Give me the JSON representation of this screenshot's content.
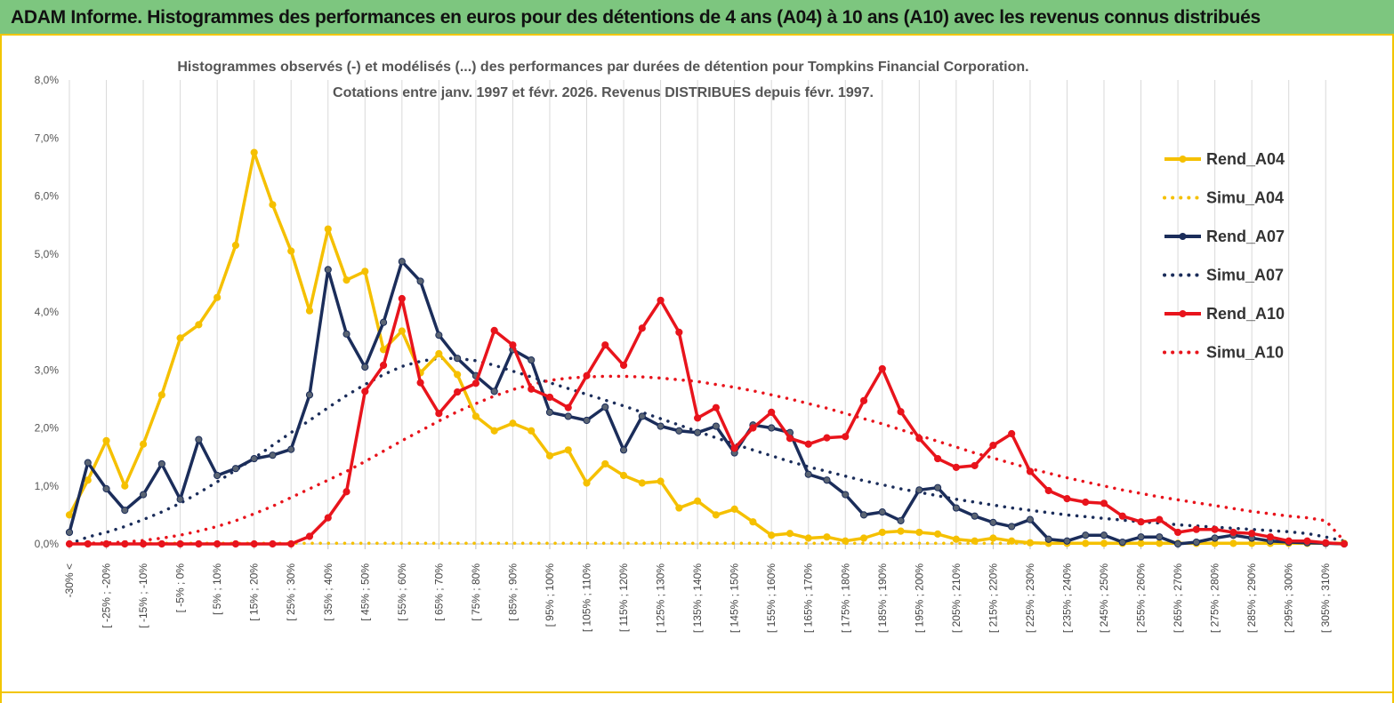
{
  "header": {
    "title": "ADAM Informe. Histogrammes des performances en euros pour des détentions de 4 ans (A04) à 10 ans (A10) avec les revenus connus distribués"
  },
  "chart_data": {
    "type": "line",
    "title": "Histogrammes observés (-) et modélisés (...) des performances par durées de détention pour Tompkins Financial Corporation.",
    "subtitle": "Cotations entre janv. 1997 et févr. 2026. Revenus DISTRIBUES depuis févr. 1997.",
    "xlabel": "",
    "ylabel": "",
    "ylim": [
      0,
      8
    ],
    "y_ticks": [
      "0,0%",
      "1,0%",
      "2,0%",
      "3,0%",
      "4,0%",
      "5,0%",
      "6,0%",
      "7,0%",
      "8,0%"
    ],
    "grid": "vertical",
    "legend_position": "right",
    "x_tick_labels": [
      "-30% <",
      "[ -25% ; -20%",
      "[ -15% ; -10%",
      "[ -5% ; 0%",
      "[ 5% ; 10%",
      "[ 15% ; 20%",
      "[ 25% ; 30%",
      "[ 35% ; 40%",
      "[ 45% ; 50%",
      "[ 55% ; 60%",
      "[ 65% ; 70%",
      "[ 75% ; 80%",
      "[ 85% ; 90%",
      "[ 95% ; 100%",
      "[ 105% ; 110%",
      "[ 115% ; 120%",
      "[ 125% ; 130%",
      "[ 135% ; 140%",
      "[ 145% ; 150%",
      "[ 155% ; 160%",
      "[ 165% ; 170%",
      "[ 175% ; 180%",
      "[ 185% ; 190%",
      "[ 195% ; 200%",
      "[ 205% ; 210%",
      "[ 215% ; 220%",
      "[ 225% ; 230%",
      "[ 235% ; 240%",
      "[ 245% ; 250%",
      "[ 255% ; 260%",
      "[ 265% ; 270%",
      "[ 275% ; 280%",
      "[ 285% ; 290%",
      "[ 295% ; 300%",
      "[ 305% ; 310%"
    ],
    "series": [
      {
        "name": "Rend_A04",
        "color": "#f5c000",
        "style": "solid",
        "values": [
          0.5,
          1.1,
          1.78,
          1.0,
          1.72,
          2.57,
          3.55,
          3.78,
          4.25,
          5.15,
          6.75,
          5.85,
          5.05,
          4.02,
          5.43,
          4.55,
          4.7,
          3.35,
          3.67,
          2.95,
          3.28,
          2.92,
          2.2,
          1.95,
          2.08,
          1.95,
          1.52,
          1.62,
          1.05,
          1.38,
          1.18,
          1.05,
          1.08,
          0.62,
          0.74,
          0.5,
          0.6,
          0.38,
          0.15,
          0.18,
          0.1,
          0.12,
          0.05,
          0.1,
          0.2,
          0.22,
          0.2,
          0.17,
          0.08,
          0.05,
          0.1,
          0.05,
          0.02,
          0.01,
          0.01,
          0.01,
          0.01,
          0.01,
          0.01,
          0.01,
          0.01,
          0.01,
          0.01,
          0.01,
          0.01,
          0.01,
          0.01,
          0.01,
          0.01,
          0.01
        ]
      },
      {
        "name": "Simu_A04",
        "color": "#f5c000",
        "style": "dotted",
        "values": [
          0.01,
          0.01,
          0.01,
          0.01,
          0.01,
          0.01,
          0.01,
          0.01,
          0.01,
          0.01,
          0.01,
          0.01,
          0.01,
          0.01,
          0.01,
          0.01,
          0.01,
          0.01,
          0.01,
          0.01,
          0.01,
          0.01,
          0.01,
          0.01,
          0.01,
          0.01,
          0.01,
          0.01,
          0.01,
          0.01,
          0.01,
          0.01,
          0.01,
          0.01,
          0.01,
          0.01,
          0.01,
          0.01,
          0.01,
          0.01,
          0.01,
          0.01,
          0.01,
          0.01,
          0.01,
          0.01,
          0.01,
          0.01,
          0.01,
          0.01,
          0.01,
          0.01,
          0.01,
          0.01,
          0.01,
          0.01,
          0.01,
          0.01,
          0.01,
          0.01,
          0.01,
          0.01,
          0.01,
          0.01,
          0.01,
          0.01,
          0.01,
          0.01,
          0.01,
          0.01
        ]
      },
      {
        "name": "Rend_A07",
        "color": "#1b2d5a",
        "style": "solid",
        "values": [
          0.2,
          1.4,
          0.95,
          0.58,
          0.85,
          1.38,
          0.77,
          1.8,
          1.18,
          1.3,
          1.47,
          1.53,
          1.63,
          2.57,
          4.73,
          3.62,
          3.05,
          3.82,
          4.87,
          4.53,
          3.6,
          3.2,
          2.9,
          2.63,
          3.35,
          3.17,
          2.27,
          2.2,
          2.13,
          2.36,
          1.62,
          2.2,
          2.03,
          1.95,
          1.92,
          2.03,
          1.57,
          2.05,
          2.0,
          1.92,
          1.2,
          1.1,
          0.85,
          0.5,
          0.55,
          0.4,
          0.93,
          0.97,
          0.62,
          0.48,
          0.37,
          0.3,
          0.42,
          0.08,
          0.05,
          0.15,
          0.15,
          0.03,
          0.12,
          0.12,
          0.0,
          0.03,
          0.1,
          0.15,
          0.1,
          0.05,
          0.03,
          0.02,
          0.01,
          0.0
        ]
      },
      {
        "name": "Simu_A07",
        "color": "#1b2d5a",
        "style": "dotted",
        "values": [
          0.0,
          0.12,
          0.2,
          0.3,
          0.42,
          0.55,
          0.7,
          0.88,
          1.07,
          1.27,
          1.48,
          1.7,
          1.92,
          2.13,
          2.35,
          2.56,
          2.75,
          2.92,
          3.06,
          3.15,
          3.2,
          3.2,
          3.16,
          3.08,
          2.98,
          2.88,
          2.78,
          2.68,
          2.58,
          2.48,
          2.38,
          2.27,
          2.16,
          2.05,
          1.94,
          1.83,
          1.72,
          1.62,
          1.52,
          1.42,
          1.33,
          1.25,
          1.17,
          1.09,
          1.02,
          0.95,
          0.89,
          0.83,
          0.77,
          0.72,
          0.67,
          0.62,
          0.58,
          0.54,
          0.5,
          0.47,
          0.44,
          0.41,
          0.38,
          0.36,
          0.33,
          0.31,
          0.29,
          0.27,
          0.25,
          0.23,
          0.21,
          0.18,
          0.12,
          0.05
        ]
      },
      {
        "name": "Rend_A10",
        "color": "#e8141c",
        "style": "solid",
        "values": [
          0.0,
          0.0,
          0.0,
          0.0,
          0.0,
          0.0,
          0.0,
          0.0,
          0.0,
          0.0,
          0.0,
          0.0,
          0.0,
          0.13,
          0.45,
          0.9,
          2.63,
          3.08,
          4.23,
          2.78,
          2.25,
          2.62,
          2.77,
          3.68,
          3.43,
          2.67,
          2.53,
          2.35,
          2.9,
          3.43,
          3.08,
          3.72,
          4.2,
          3.65,
          2.17,
          2.35,
          1.65,
          2.0,
          2.27,
          1.82,
          1.72,
          1.83,
          1.85,
          2.47,
          3.02,
          2.28,
          1.82,
          1.47,
          1.32,
          1.35,
          1.7,
          1.9,
          1.25,
          0.92,
          0.78,
          0.72,
          0.7,
          0.48,
          0.38,
          0.42,
          0.2,
          0.25,
          0.25,
          0.2,
          0.18,
          0.12,
          0.05,
          0.05,
          0.02,
          0.0
        ]
      },
      {
        "name": "Simu_A10",
        "color": "#e8141c",
        "style": "dotted",
        "values": [
          0.0,
          0.01,
          0.02,
          0.03,
          0.06,
          0.1,
          0.15,
          0.22,
          0.3,
          0.4,
          0.52,
          0.65,
          0.8,
          0.95,
          1.1,
          1.25,
          1.42,
          1.6,
          1.78,
          1.95,
          2.12,
          2.28,
          2.42,
          2.55,
          2.66,
          2.75,
          2.82,
          2.86,
          2.88,
          2.89,
          2.89,
          2.88,
          2.86,
          2.83,
          2.8,
          2.75,
          2.7,
          2.64,
          2.57,
          2.5,
          2.42,
          2.34,
          2.25,
          2.16,
          2.07,
          1.97,
          1.87,
          1.77,
          1.67,
          1.57,
          1.48,
          1.39,
          1.3,
          1.22,
          1.14,
          1.07,
          1.0,
          0.93,
          0.87,
          0.81,
          0.76,
          0.71,
          0.66,
          0.61,
          0.56,
          0.52,
          0.48,
          0.45,
          0.4,
          0.05
        ]
      }
    ]
  }
}
